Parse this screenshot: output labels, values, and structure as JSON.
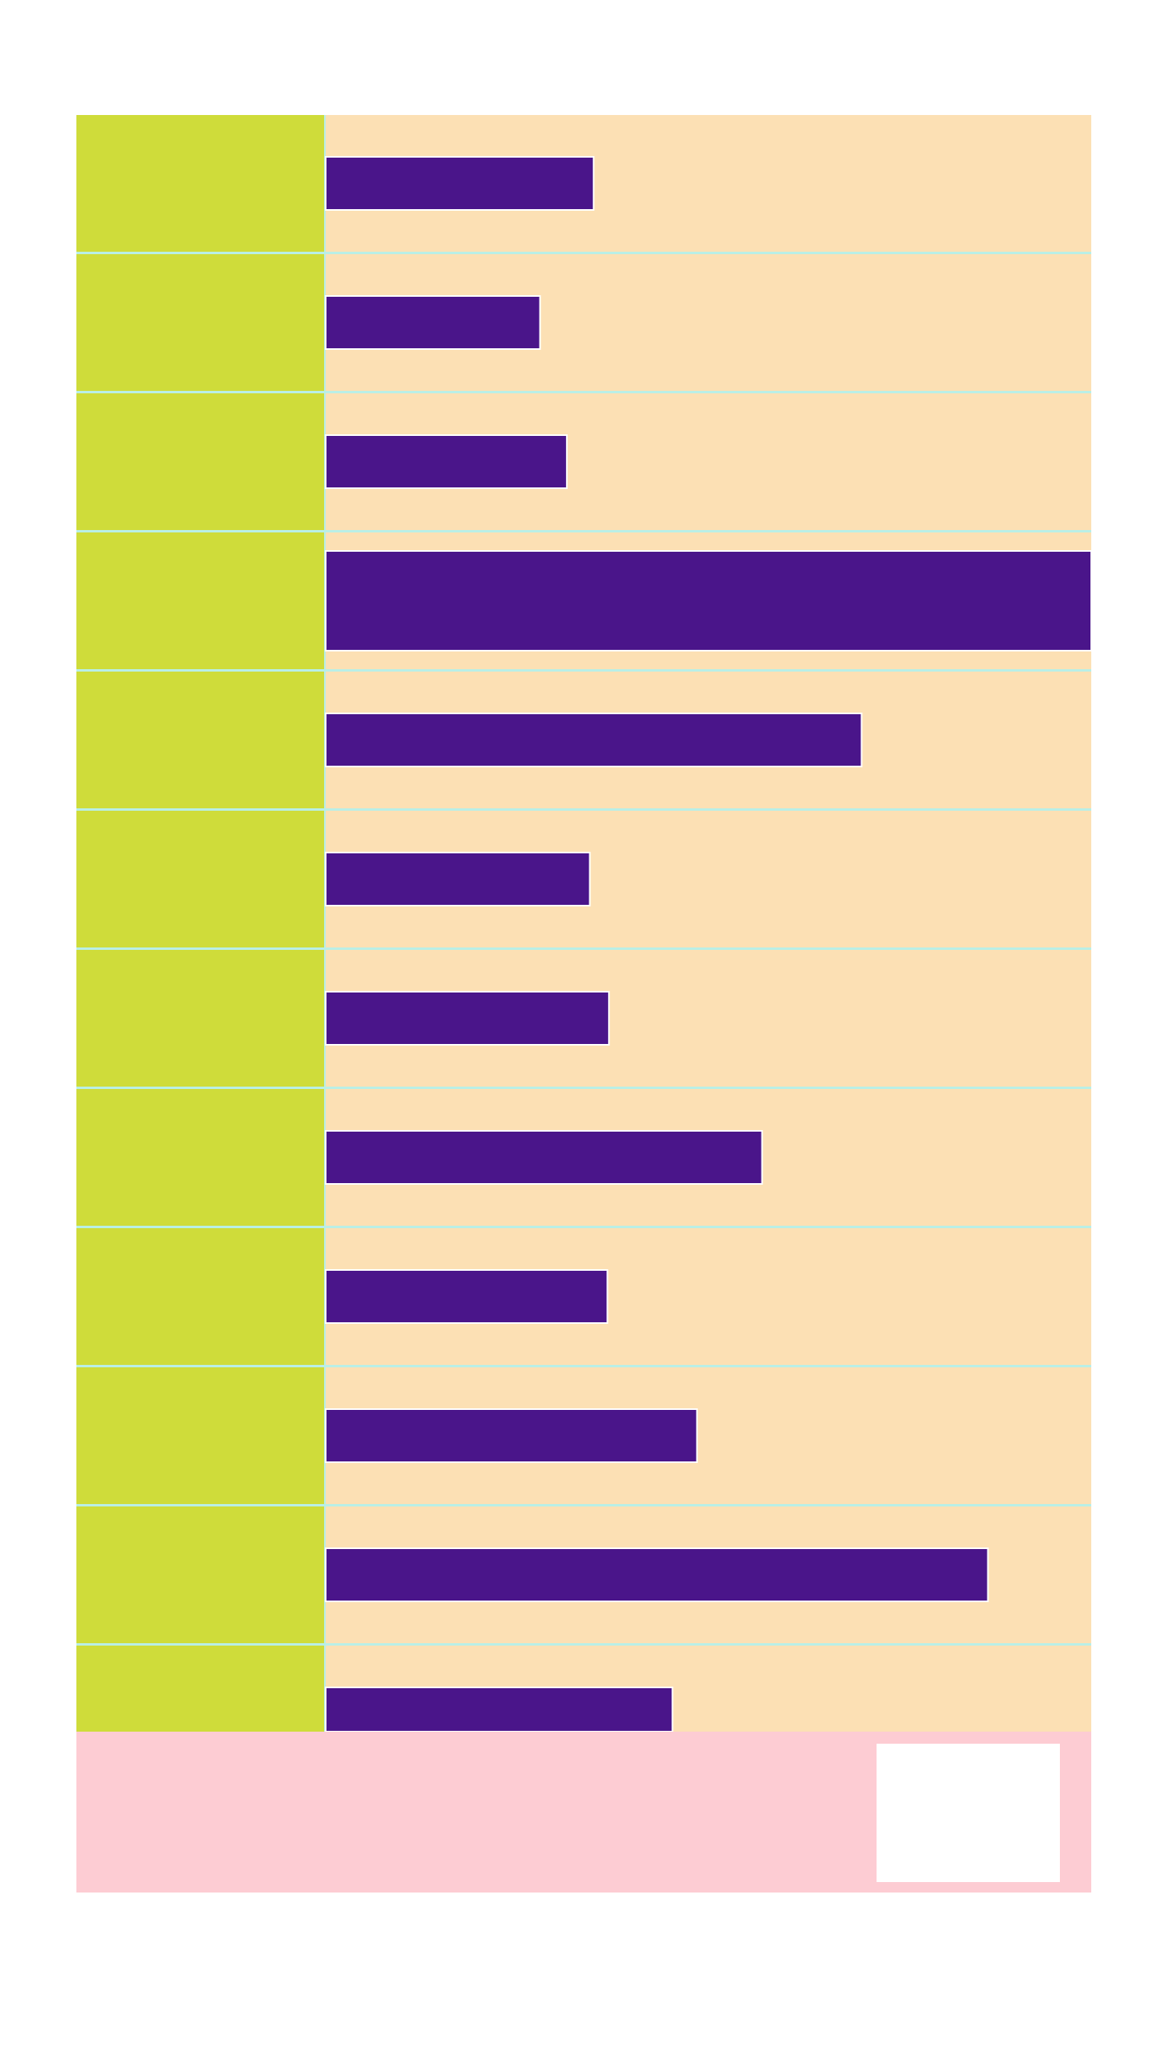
{
  "colors": {
    "background": "#ffffff",
    "label_column": "#cfdc3a",
    "row_background": "#fce0b4",
    "bar": "#4a158a",
    "row_separator": "#b9efe6",
    "bar_border": "#ffffff",
    "footer": "#fdccd3",
    "legend_box": "#ffffff"
  },
  "chart_data": {
    "type": "bar",
    "orientation": "horizontal",
    "title": "",
    "xlabel": "",
    "ylabel": "",
    "categories": [
      "",
      "",
      "",
      "",
      "",
      "",
      "",
      "",
      "",
      "",
      "",
      ""
    ],
    "values": [
      35,
      28,
      31.5,
      100,
      70,
      34.5,
      37,
      57,
      36.8,
      48.5,
      86.5,
      45.3
    ],
    "xlim": [
      0,
      100
    ],
    "grid": false,
    "legend": "bottom-right"
  }
}
